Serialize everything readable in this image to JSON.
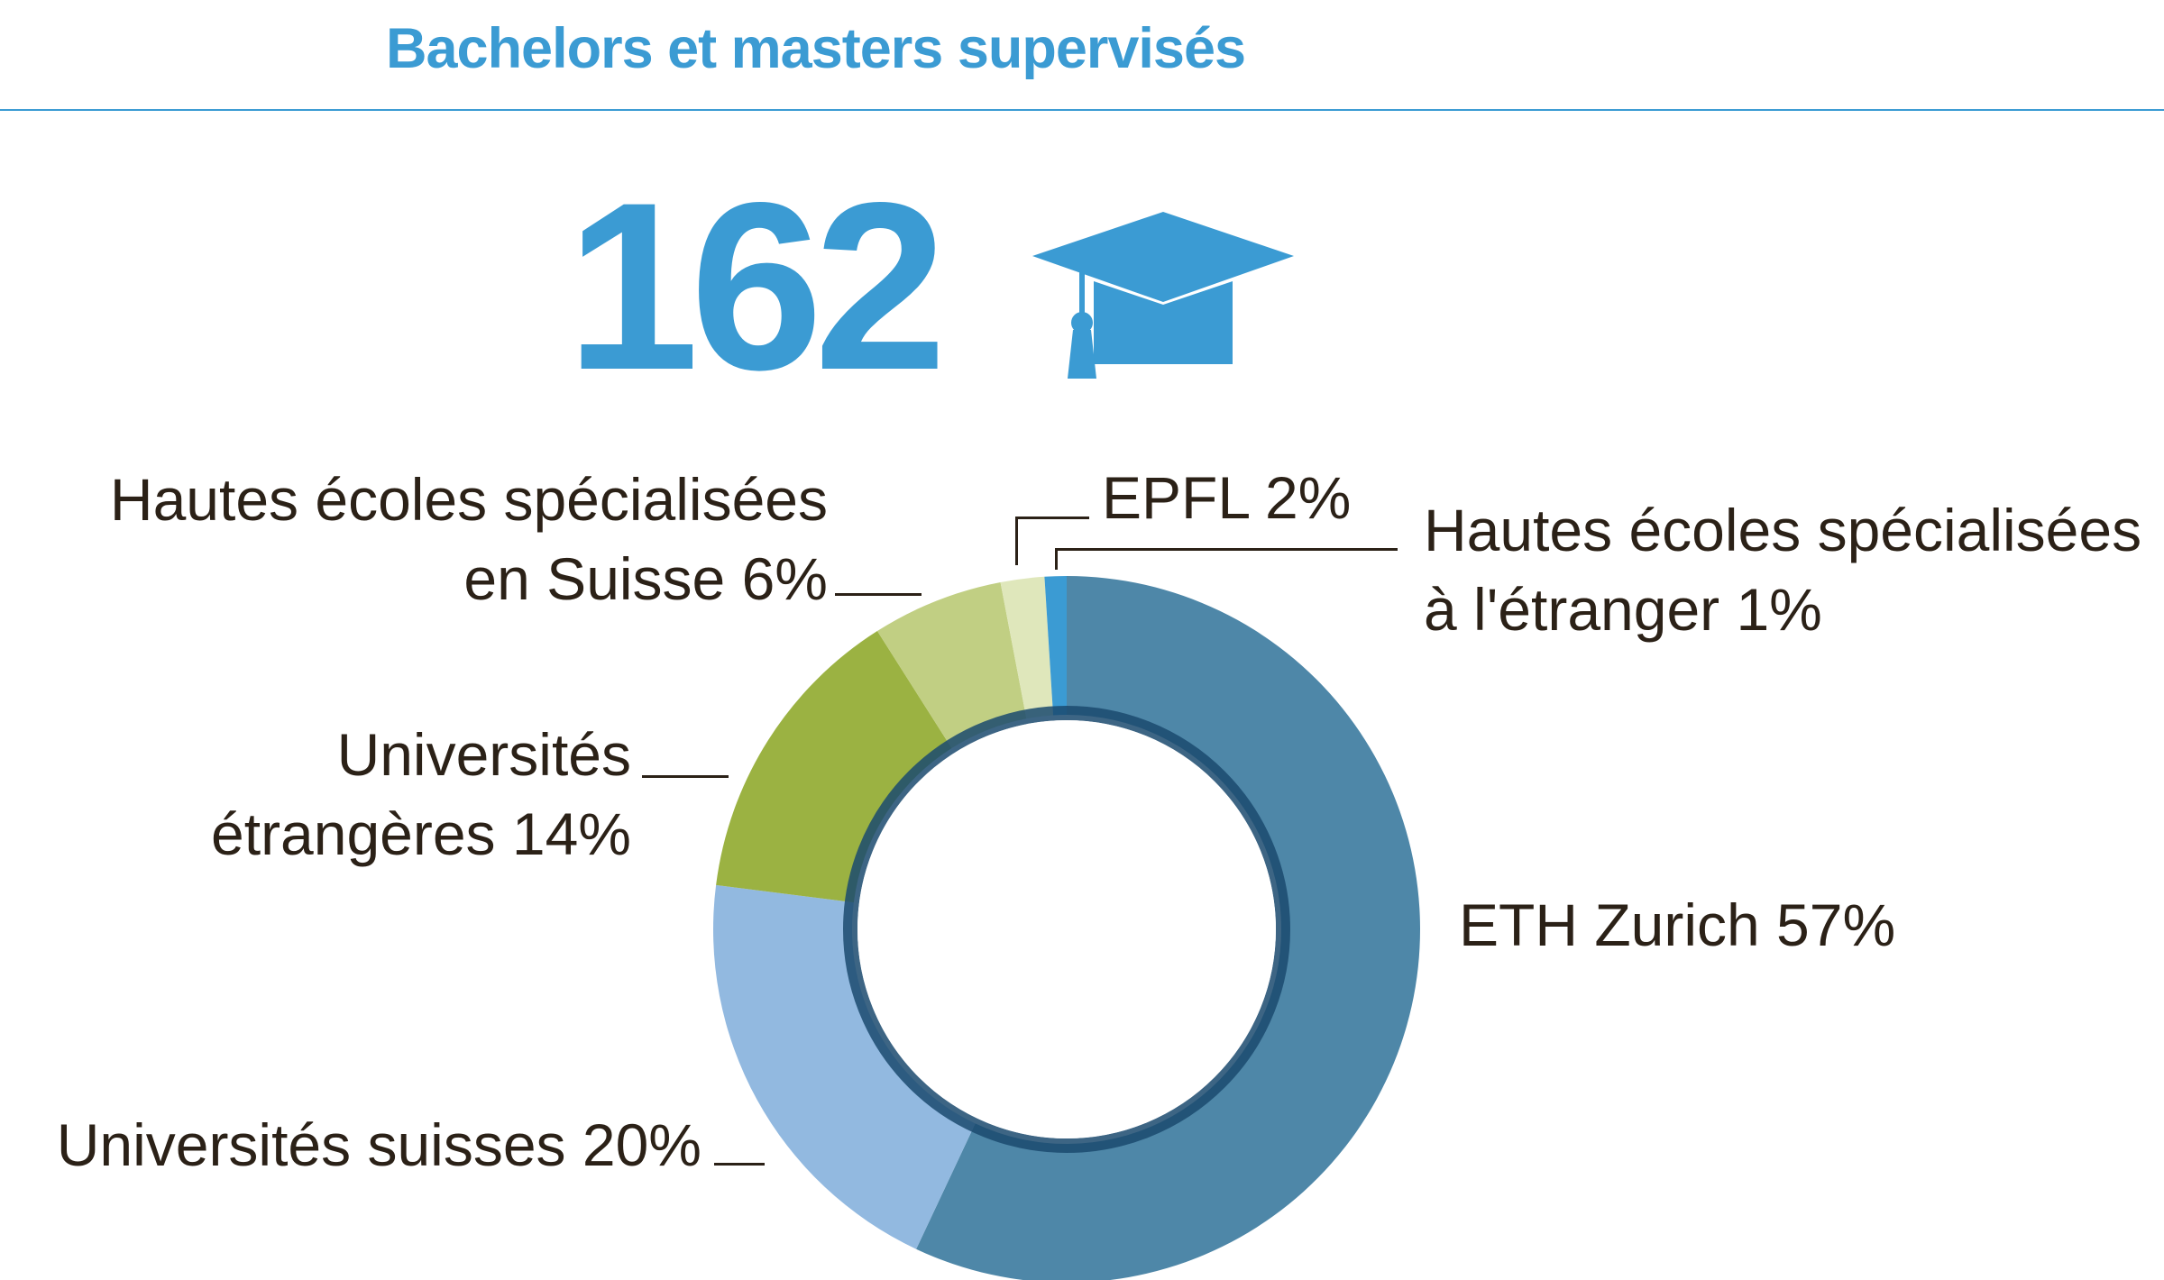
{
  "header": {
    "title": "Bachelors et masters supervisés",
    "total": "162"
  },
  "icons": {
    "cap": "graduation-cap-icon"
  },
  "colors": {
    "accent": "#3b9bd3",
    "text": "#2b2117",
    "slices": [
      "#4e87a8",
      "#92b9e0",
      "#9bb242",
      "#c1cf83",
      "#dfe7bb",
      "#3b9bd3"
    ]
  },
  "chart_data": {
    "type": "pie",
    "donut": true,
    "title": "Bachelors et masters supervisés",
    "total": 162,
    "slices": [
      {
        "label_lines": [
          "ETH Zurich 57%"
        ],
        "value": 57
      },
      {
        "label_lines": [
          "Universités suisses 20%"
        ],
        "value": 20
      },
      {
        "label_lines": [
          "Universités",
          "étrangères 14%"
        ],
        "value": 14
      },
      {
        "label_lines": [
          "Hautes écoles spécialisées",
          "en Suisse 6%"
        ],
        "value": 6
      },
      {
        "label_lines": [
          "EPFL 2%"
        ],
        "value": 2
      },
      {
        "label_lines": [
          "Hautes écoles spécialisées",
          "à l'étranger 1%"
        ],
        "value": 1
      }
    ]
  }
}
